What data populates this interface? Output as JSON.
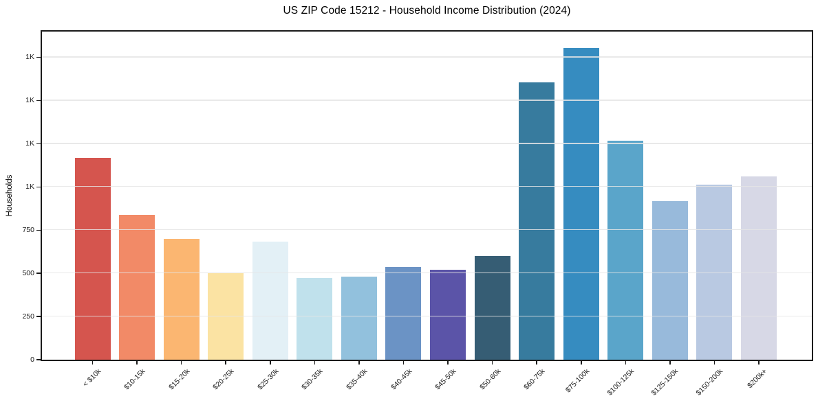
{
  "chart_data": {
    "type": "bar",
    "title": "US ZIP Code 15212 - Household Income Distribution (2024)",
    "xlabel": "",
    "ylabel": "Households",
    "ylim": [
      0,
      1900
    ],
    "grid": "horizontal-light-over-bars",
    "legend": "none",
    "categories": [
      "< $10k",
      "$10-15k",
      "$15-20k",
      "$20-25k",
      "$25-30k",
      "$30-35k",
      "$35-40k",
      "$40-45k",
      "$45-50k",
      "$50-60k",
      "$60-75k",
      "$75-100k",
      "$100-125k",
      "$125-150k",
      "$150-200k",
      "$200k+"
    ],
    "values": [
      1170,
      840,
      700,
      500,
      685,
      475,
      480,
      535,
      520,
      600,
      1605,
      1805,
      1270,
      920,
      1015,
      1060
    ],
    "bar_colors": [
      "#d5554e",
      "#f28a67",
      "#fbb671",
      "#fbe3a3",
      "#e3f0f6",
      "#c0e1ec",
      "#92c1dd",
      "#6b93c5",
      "#5b54a8",
      "#365d74",
      "#377b9e",
      "#368cc0",
      "#5aa5ca",
      "#98badb",
      "#b9c9e2",
      "#d7d8e6"
    ],
    "y_ticks": [
      {
        "value": 0,
        "label": "0"
      },
      {
        "value": 250,
        "label": "250"
      },
      {
        "value": 500,
        "label": "500"
      },
      {
        "value": 750,
        "label": "750"
      },
      {
        "value": 1000,
        "label": "1K"
      },
      {
        "value": 1250,
        "label": "1K"
      },
      {
        "value": 1500,
        "label": "1K"
      },
      {
        "value": 1750,
        "label": "1K"
      }
    ],
    "axis_color": "#1a1a1a",
    "gridline_color": "#e5e5e5",
    "background_color": "#ffffff"
  }
}
